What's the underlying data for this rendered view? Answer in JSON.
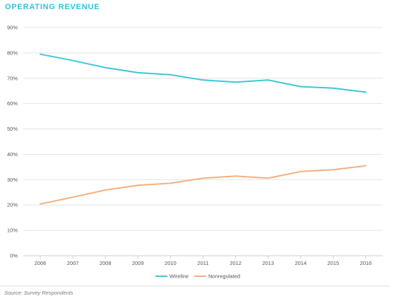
{
  "chart_data": {
    "type": "line",
    "title": "OPERATING REVENUE",
    "x": [
      "2006",
      "2007",
      "2008",
      "2009",
      "2010",
      "2011",
      "2012",
      "2013",
      "2014",
      "2015",
      "2016"
    ],
    "series": [
      {
        "name": "Wireline",
        "color": "#3ec7d8",
        "values": [
          79.5,
          77,
          74.2,
          72.2,
          71.4,
          69.3,
          68.5,
          69.3,
          66.7,
          66.1,
          64.5
        ]
      },
      {
        "name": "Nonregulated",
        "color": "#f5b07c",
        "values": [
          20.4,
          23.1,
          25.9,
          27.8,
          28.6,
          30.6,
          31.4,
          30.6,
          33.2,
          33.9,
          35.5
        ]
      }
    ],
    "ylim": [
      0,
      90
    ],
    "yticks": [
      "0%",
      "10%",
      "20%",
      "30%",
      "40%",
      "50%",
      "60%",
      "70%",
      "80%",
      "90%"
    ],
    "grid": true,
    "legend": "bottom-center",
    "source": "Source: Survey Respondents"
  }
}
